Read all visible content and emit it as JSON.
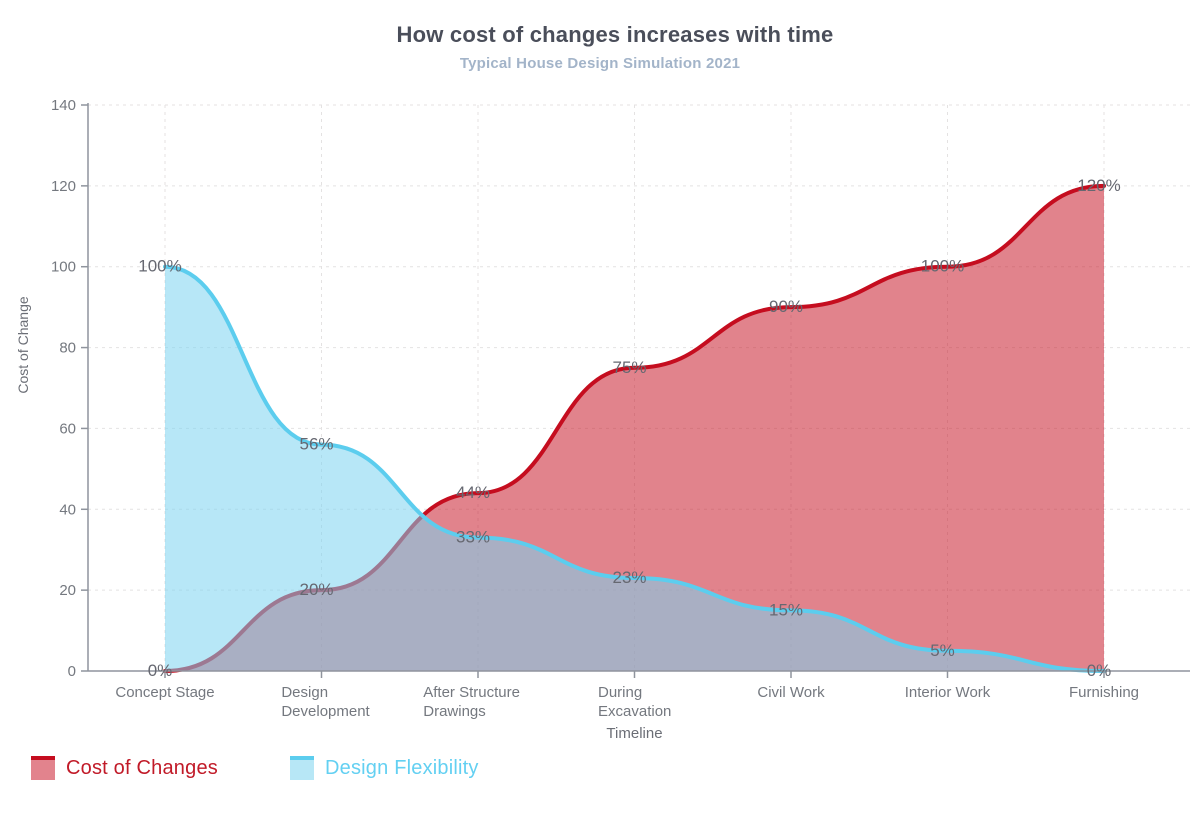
{
  "title": "How cost of changes increases with time",
  "subtitle": "Typical House Design Simulation 2021",
  "chart_data": {
    "type": "area",
    "curve": "smooth",
    "categories": [
      "Concept Stage",
      "Design\nDevelopment",
      "After Structure\nDrawings",
      "During\nExcavation",
      "Civil Work",
      "Interior Work",
      "Furnishing"
    ],
    "series": [
      {
        "name": "Cost of Changes",
        "values": [
          0,
          20,
          44,
          75,
          90,
          100,
          120
        ],
        "data_labels": [
          "0%",
          "20%",
          "44%",
          "75%",
          "90%",
          "100%",
          "120%"
        ],
        "line_color": "#c50d1f",
        "fill_color": "rgba(201,29,46,0.55)",
        "swatch_fill": "#e2838d",
        "legend_text_color": "#c11a28"
      },
      {
        "name": "Design Flexibility",
        "values": [
          100,
          56,
          33,
          23,
          15,
          5,
          0
        ],
        "data_labels": [
          "100%",
          "56%",
          "33%",
          "23%",
          "15%",
          "5%",
          "0%"
        ],
        "line_color": "#5ccdee",
        "fill_color": "rgba(124,212,240,0.55)",
        "swatch_fill": "#b7e7f6",
        "legend_text_color": "#63d0f2"
      }
    ],
    "xlabel": "Timeline",
    "ylabel": "Cost of Change",
    "ylim": [
      0,
      140
    ],
    "yticks": [
      0,
      20,
      40,
      60,
      80,
      100,
      120,
      140
    ],
    "grid": "dashed",
    "legend_position": "bottom-left",
    "data_label_format": "percent"
  },
  "colors": {
    "title": "#4a4e5a",
    "subtitle": "#a3b4c9",
    "axis": "#8f949d",
    "grid": "#e4e2e2",
    "tick_label": "#74787f",
    "data_label": "#666871",
    "axis_title": "#6b6e76"
  }
}
